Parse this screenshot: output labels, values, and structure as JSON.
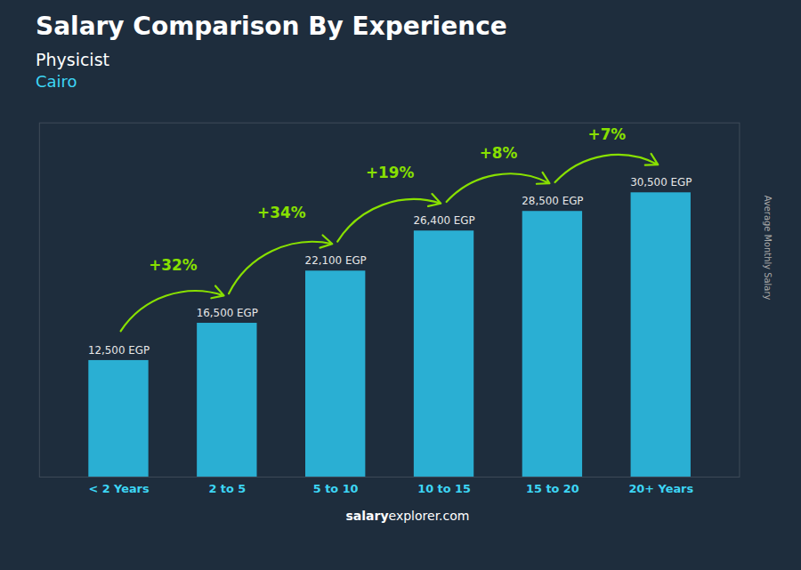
{
  "chart_data": {
    "type": "bar",
    "title": "Salary Comparison By Experience",
    "subtitle": [
      "Physicist",
      "Cairo"
    ],
    "ylabel": "Average Monthly Salary",
    "caption": [
      "salary",
      "explorer.com"
    ],
    "categories": [
      "< 2 Years",
      "2 to 5",
      "5 to 10",
      "10 to 15",
      "15 to 20",
      "20+ Years"
    ],
    "values": [
      12500,
      16500,
      22100,
      26400,
      28500,
      30500
    ],
    "value_labels": [
      "12,500 EGP",
      "16,500 EGP",
      "22,100 EGP",
      "26,400 EGP",
      "28,500 EGP",
      "30,500 EGP"
    ],
    "data_labels": true,
    "color": "#2aafd3",
    "ylim": [
      0,
      38000
    ],
    "tick_labels": "x",
    "grid": false,
    "annotations": [
      {
        "text": "+32%",
        "from": "< 2 Years",
        "to": "2 to 5",
        "color": "#88e000"
      },
      {
        "text": "+34%",
        "from": "2 to 5",
        "to": "5 to 10",
        "color": "#88e000"
      },
      {
        "text": "+19%",
        "from": "5 to 10",
        "to": "10 to 15",
        "color": "#88e000"
      },
      {
        "text": "+8%",
        "from": "10 to 15",
        "to": "15 to 20",
        "color": "#88e000"
      },
      {
        "text": "+7%",
        "from": "15 to 20",
        "to": "20+ Years",
        "color": "#88e000"
      }
    ]
  }
}
